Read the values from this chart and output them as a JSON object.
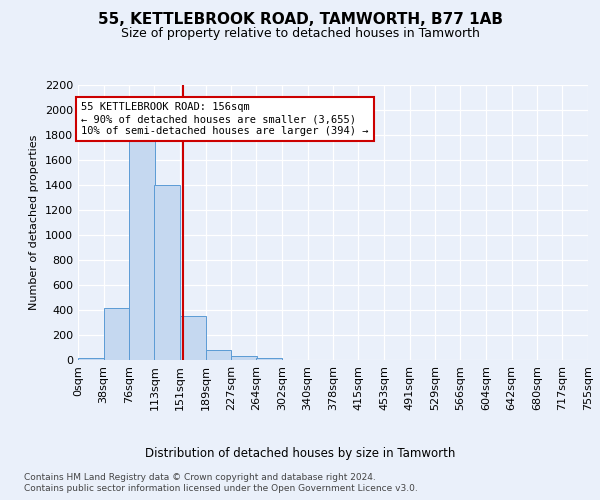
{
  "title": "55, KETTLEBROOK ROAD, TAMWORTH, B77 1AB",
  "subtitle": "Size of property relative to detached houses in Tamworth",
  "xlabel": "Distribution of detached houses by size in Tamworth",
  "ylabel": "Number of detached properties",
  "bin_labels": [
    "0sqm",
    "38sqm",
    "76sqm",
    "113sqm",
    "151sqm",
    "189sqm",
    "227sqm",
    "264sqm",
    "302sqm",
    "340sqm",
    "378sqm",
    "415sqm",
    "453sqm",
    "491sqm",
    "529sqm",
    "566sqm",
    "604sqm",
    "642sqm",
    "680sqm",
    "717sqm",
    "755sqm"
  ],
  "bar_values": [
    15,
    420,
    1800,
    1400,
    350,
    80,
    35,
    20,
    0,
    0,
    0,
    0,
    0,
    0,
    0,
    0,
    0,
    0,
    0,
    0
  ],
  "bin_edges": [
    0,
    38,
    76,
    113,
    151,
    189,
    227,
    264,
    302,
    340,
    378,
    415,
    453,
    491,
    529,
    566,
    604,
    642,
    680,
    717,
    755
  ],
  "bar_color": "#c5d8f0",
  "bar_edge_color": "#5b9bd5",
  "vline_x": 156,
  "vline_color": "#cc0000",
  "annotation_text": "55 KETTLEBROOK ROAD: 156sqm\n← 90% of detached houses are smaller (3,655)\n10% of semi-detached houses are larger (394) →",
  "annotation_box_color": "#cc0000",
  "ylim": [
    0,
    2200
  ],
  "yticks": [
    0,
    200,
    400,
    600,
    800,
    1000,
    1200,
    1400,
    1600,
    1800,
    2000,
    2200
  ],
  "footer_line1": "Contains HM Land Registry data © Crown copyright and database right 2024.",
  "footer_line2": "Contains public sector information licensed under the Open Government Licence v3.0.",
  "bg_color": "#eaf0fa",
  "plot_bg_color": "#eaf0fa"
}
